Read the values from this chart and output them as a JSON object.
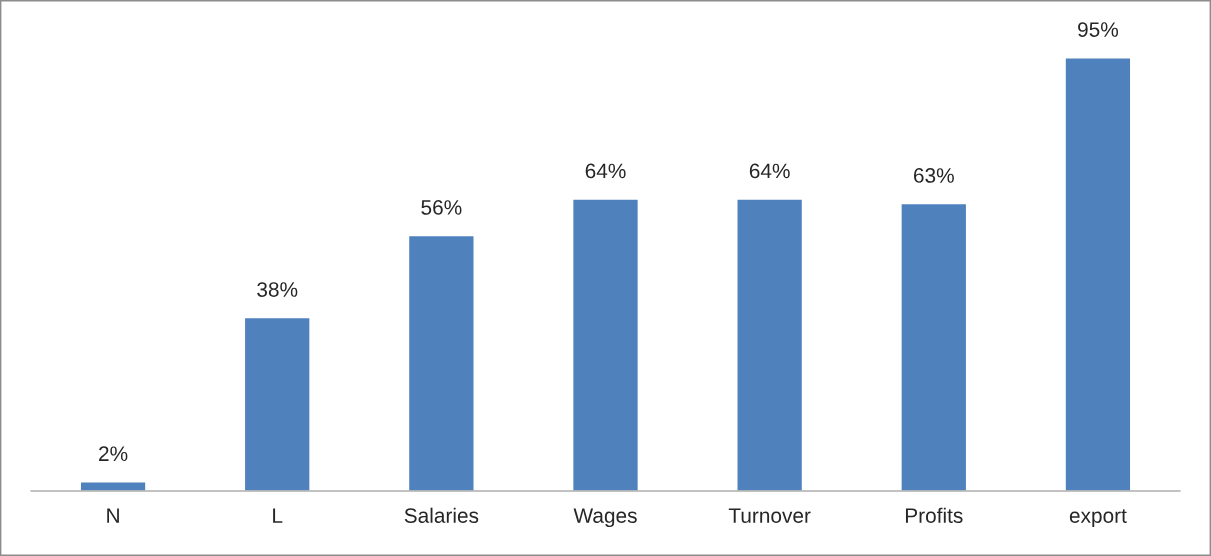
{
  "chart_data": {
    "type": "bar",
    "categories": [
      "N",
      "L",
      "Salaries",
      "Wages",
      "Turnover",
      "Profits",
      "export"
    ],
    "values": [
      2,
      38,
      56,
      64,
      64,
      63,
      95
    ],
    "value_labels": [
      "2%",
      "38%",
      "56%",
      "64%",
      "64%",
      "63%",
      "95%"
    ],
    "color": "#4f81bd",
    "grid": false
  }
}
